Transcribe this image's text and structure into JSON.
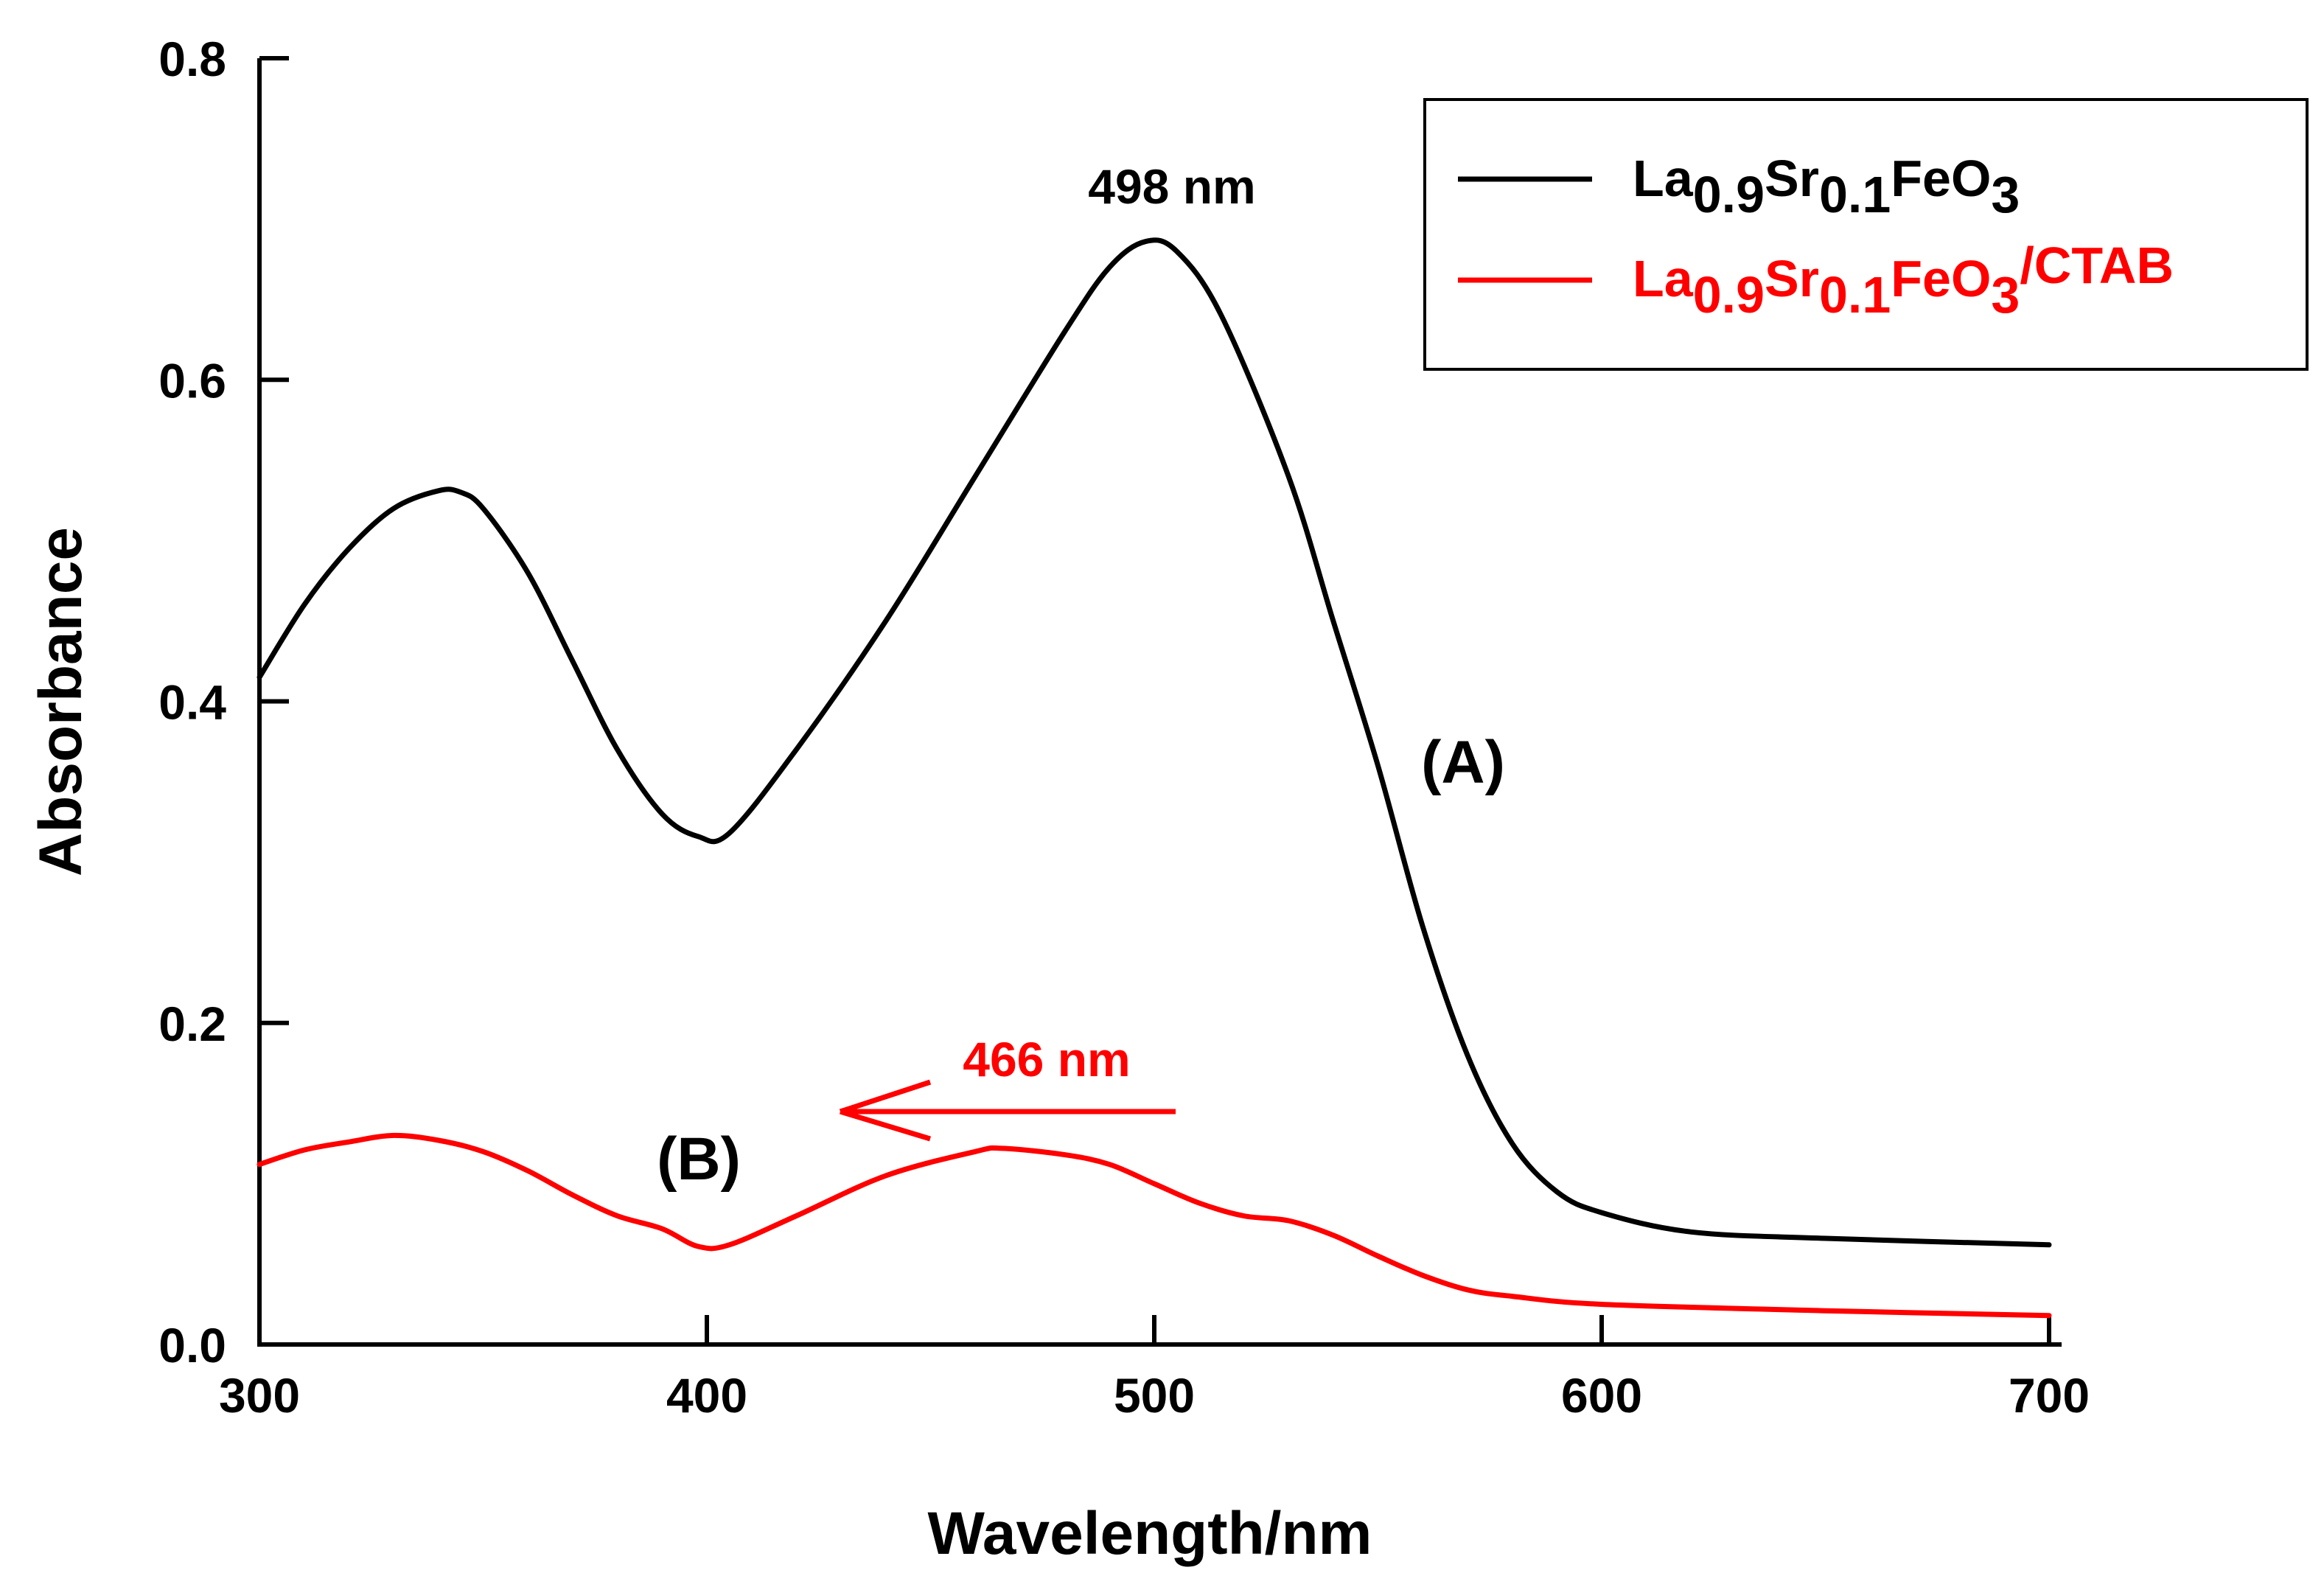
{
  "chart_data": {
    "type": "line",
    "xlabel": "Wavelength/nm",
    "ylabel": "Absorbance",
    "xlim": [
      300,
      700
    ],
    "ylim": [
      0.0,
      0.8
    ],
    "x_ticks": [
      300,
      400,
      500,
      600,
      700
    ],
    "x_tick_labels": [
      "300",
      "400",
      "500",
      "600",
      "700"
    ],
    "y_ticks": [
      0.0,
      0.2,
      0.4,
      0.6,
      0.8
    ],
    "y_tick_labels": [
      "0.0",
      "0.2",
      "0.4",
      "0.6",
      "0.8"
    ],
    "legend_position": "top-right",
    "series": [
      {
        "name": "La0.9Sr0.1FeO3",
        "legend": {
          "base1": "La",
          "sub1": "0.9",
          "base2": "Sr",
          "sub2": "0.1",
          "base3": "FeO",
          "sub3": "3",
          "suffix": ""
        },
        "color": "#000000",
        "curve_label": "(A)",
        "peak_label": "498 nm",
        "x": [
          300,
          310,
          320,
          330,
          340,
          345,
          350,
          360,
          370,
          380,
          390,
          398,
          405,
          420,
          440,
          460,
          480,
          490,
          498,
          505,
          515,
          530,
          540,
          550,
          560,
          570,
          580,
          590,
          600,
          620,
          650,
          700
        ],
        "y": [
          0.415,
          0.46,
          0.495,
          0.52,
          0.531,
          0.53,
          0.52,
          0.48,
          0.425,
          0.37,
          0.33,
          0.316,
          0.318,
          0.37,
          0.45,
          0.54,
          0.63,
          0.67,
          0.686,
          0.68,
          0.64,
          0.54,
          0.45,
          0.36,
          0.26,
          0.18,
          0.125,
          0.095,
          0.082,
          0.07,
          0.066,
          0.062
        ]
      },
      {
        "name": "La0.9Sr0.1FeO3/CTAB",
        "legend": {
          "base1": "La",
          "sub1": "0.9",
          "base2": "Sr",
          "sub2": "0.1",
          "base3": "FeO",
          "sub3": "3",
          "suffix": "/CTAB"
        },
        "color": "#ff0000",
        "curve_label": "(B)",
        "peak_label": "466 nm",
        "x": [
          300,
          310,
          320,
          330,
          340,
          350,
          360,
          370,
          380,
          390,
          398,
          405,
          420,
          440,
          460,
          466,
          480,
          490,
          500,
          510,
          520,
          530,
          540,
          550,
          560,
          570,
          580,
          600,
          650,
          700
        ],
        "y": [
          0.112,
          0.121,
          0.126,
          0.13,
          0.127,
          0.12,
          0.108,
          0.093,
          0.08,
          0.072,
          0.061,
          0.062,
          0.08,
          0.105,
          0.12,
          0.122,
          0.118,
          0.112,
          0.1,
          0.088,
          0.08,
          0.077,
          0.068,
          0.055,
          0.043,
          0.034,
          0.03,
          0.025,
          0.021,
          0.018
        ]
      }
    ]
  }
}
